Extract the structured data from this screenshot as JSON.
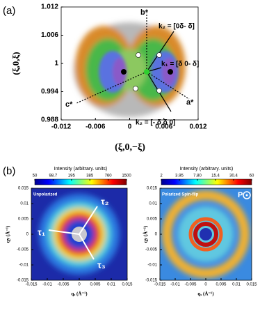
{
  "panel_labels": [
    "(a)",
    "(b)"
  ],
  "chart_data": [
    {
      "type": "heatmap",
      "xlabel": "(ξ,0,−ξ)",
      "ylabel": "(ξ,0,ξ)",
      "xlim": [
        -0.012,
        0.012
      ],
      "xticks": [
        -0.012,
        -0.006,
        0,
        0.006,
        0.012
      ],
      "ylim": [
        0.988,
        1.012
      ],
      "yticks": [
        0.988,
        0.994,
        1,
        1.006,
        1.012
      ],
      "annotations": [
        "b*",
        "c*",
        "a*",
        "k₂ = [0δ- δ]",
        "k₁ = [δ 0- δ]",
        "k₂ = [- δ δ 0]"
      ]
    },
    {
      "type": "heatmap",
      "title": "Unpolarized",
      "xlabel": "qₓ (Å⁻¹)",
      "ylabel": "qy (Å⁻¹)",
      "xlim": [
        -0.015,
        0.015
      ],
      "xticks": [
        -0.015,
        -0.01,
        -0.005,
        0,
        0.005,
        0.01,
        0.015
      ],
      "ylim": [
        -0.015,
        0.015
      ],
      "yticks": [
        -0.015,
        -0.01,
        -0.005,
        0,
        0.005,
        0.01,
        0.015
      ],
      "colorbar": {
        "label": "Intensity (arbitrary. units)",
        "log": true,
        "clim": [
          50,
          1500
        ],
        "ticks": [
          50,
          98.7,
          195,
          385,
          760,
          1500
        ]
      },
      "annotations": [
        "τ₁",
        "τ₂",
        "τ₃"
      ]
    },
    {
      "type": "heatmap",
      "title": "Polarized Spin-flip",
      "xlabel": "qₓ (Å⁻¹)",
      "ylabel": "qy (Å⁻¹)",
      "xlim": [
        -0.015,
        0.015
      ],
      "xticks": [
        -0.015,
        -0.01,
        -0.005,
        0,
        0.005,
        0.01,
        0.015
      ],
      "ylim": [
        -0.015,
        0.015
      ],
      "yticks": [
        -0.015,
        -0.01,
        -0.005,
        0,
        0.005,
        0.01,
        0.015
      ],
      "colorbar": {
        "label": "Intensity (arbitrary. units)",
        "log": true,
        "clim": [
          2,
          60
        ],
        "ticks": [
          2,
          3.95,
          {
            "value": 7.8,
            "label": "7.80"
          },
          15.4,
          30.4,
          60
        ]
      },
      "annotations": [
        "P"
      ]
    }
  ]
}
